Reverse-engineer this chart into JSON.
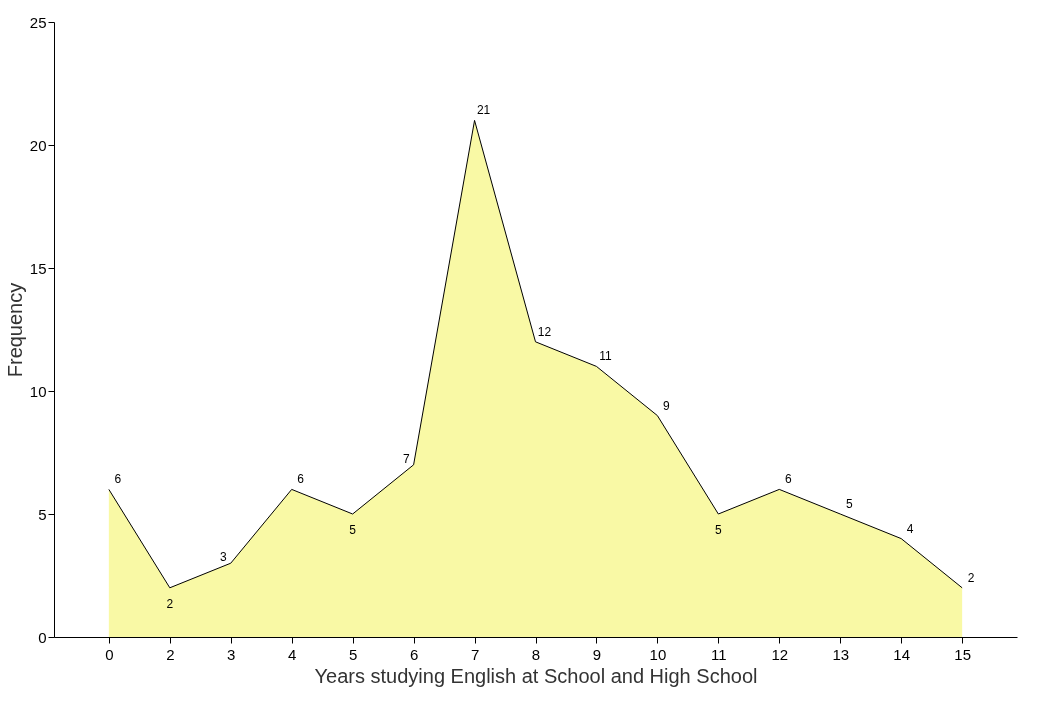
{
  "chart_data": {
    "type": "area",
    "xlabel": "Years studying English at School and High School",
    "ylabel": "Frequency",
    "categories": [
      "0",
      "2",
      "3",
      "4",
      "5",
      "6",
      "7",
      "8",
      "9",
      "10",
      "11",
      "12",
      "13",
      "14",
      "15"
    ],
    "values": [
      6,
      2,
      3,
      6,
      5,
      7,
      21,
      12,
      11,
      9,
      5,
      6,
      5,
      4,
      2
    ],
    "color": "#f7f77f",
    "ylim": [
      0,
      25
    ],
    "yticks": [
      0,
      5,
      10,
      15,
      20,
      25
    ],
    "data_labels": true
  }
}
